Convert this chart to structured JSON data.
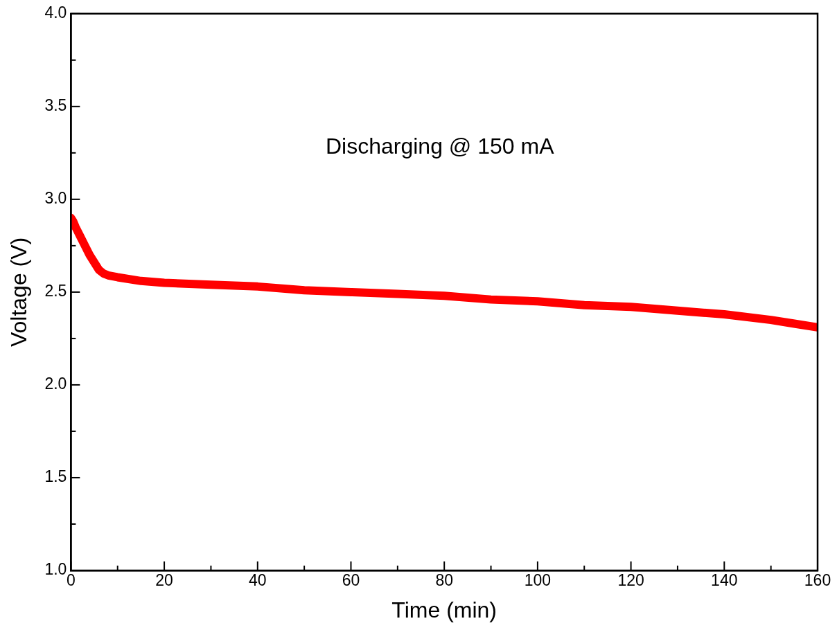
{
  "chart_data": {
    "type": "line",
    "xlabel": "Time (min)",
    "ylabel": "Voltage (V)",
    "annotations": [
      "Discharging @ 150 mA"
    ],
    "x": [
      0,
      0.5,
      1,
      2,
      3,
      4,
      5,
      6,
      7,
      8,
      10,
      15,
      20,
      30,
      40,
      50,
      60,
      70,
      80,
      90,
      100,
      110,
      120,
      130,
      140,
      150,
      155,
      160
    ],
    "series": [
      {
        "color": "#ff0000",
        "values": [
          2.9,
          2.88,
          2.85,
          2.8,
          2.75,
          2.7,
          2.66,
          2.62,
          2.6,
          2.59,
          2.58,
          2.56,
          2.55,
          2.54,
          2.53,
          2.51,
          2.5,
          2.49,
          2.48,
          2.46,
          2.45,
          2.43,
          2.42,
          2.4,
          2.38,
          2.35,
          2.33,
          2.31
        ]
      }
    ],
    "xlim": [
      0,
      160
    ],
    "ylim": [
      1.0,
      4.0
    ],
    "xticks": [
      0,
      {
        "value": 10,
        "label": null
      },
      20,
      {
        "value": 30,
        "label": null
      },
      40,
      {
        "value": 50,
        "label": null
      },
      60,
      {
        "value": 70,
        "label": null
      },
      80,
      {
        "value": 90,
        "label": null
      },
      100,
      {
        "value": 110,
        "label": null
      },
      120,
      {
        "value": 130,
        "label": null
      },
      140,
      {
        "value": 150,
        "label": null
      },
      160
    ],
    "yticks": [
      {
        "value": 1,
        "label": "1.0"
      },
      {
        "value": 1.25,
        "label": null
      },
      {
        "value": 1.5,
        "label": "1.5"
      },
      {
        "value": 1.75,
        "label": null
      },
      {
        "value": 2,
        "label": "2.0"
      },
      {
        "value": 2.25,
        "label": null
      },
      {
        "value": 2.5,
        "label": "2.5"
      },
      {
        "value": 2.75,
        "label": null
      },
      {
        "value": 3,
        "label": "3.0"
      },
      {
        "value": 3.25,
        "label": null
      },
      {
        "value": 3.5,
        "label": "3.5"
      },
      {
        "value": 3.75,
        "label": null
      },
      {
        "value": 4,
        "label": "4.0"
      }
    ],
    "grid": false,
    "legend": false,
    "marker": "none",
    "line_style": "solid"
  }
}
